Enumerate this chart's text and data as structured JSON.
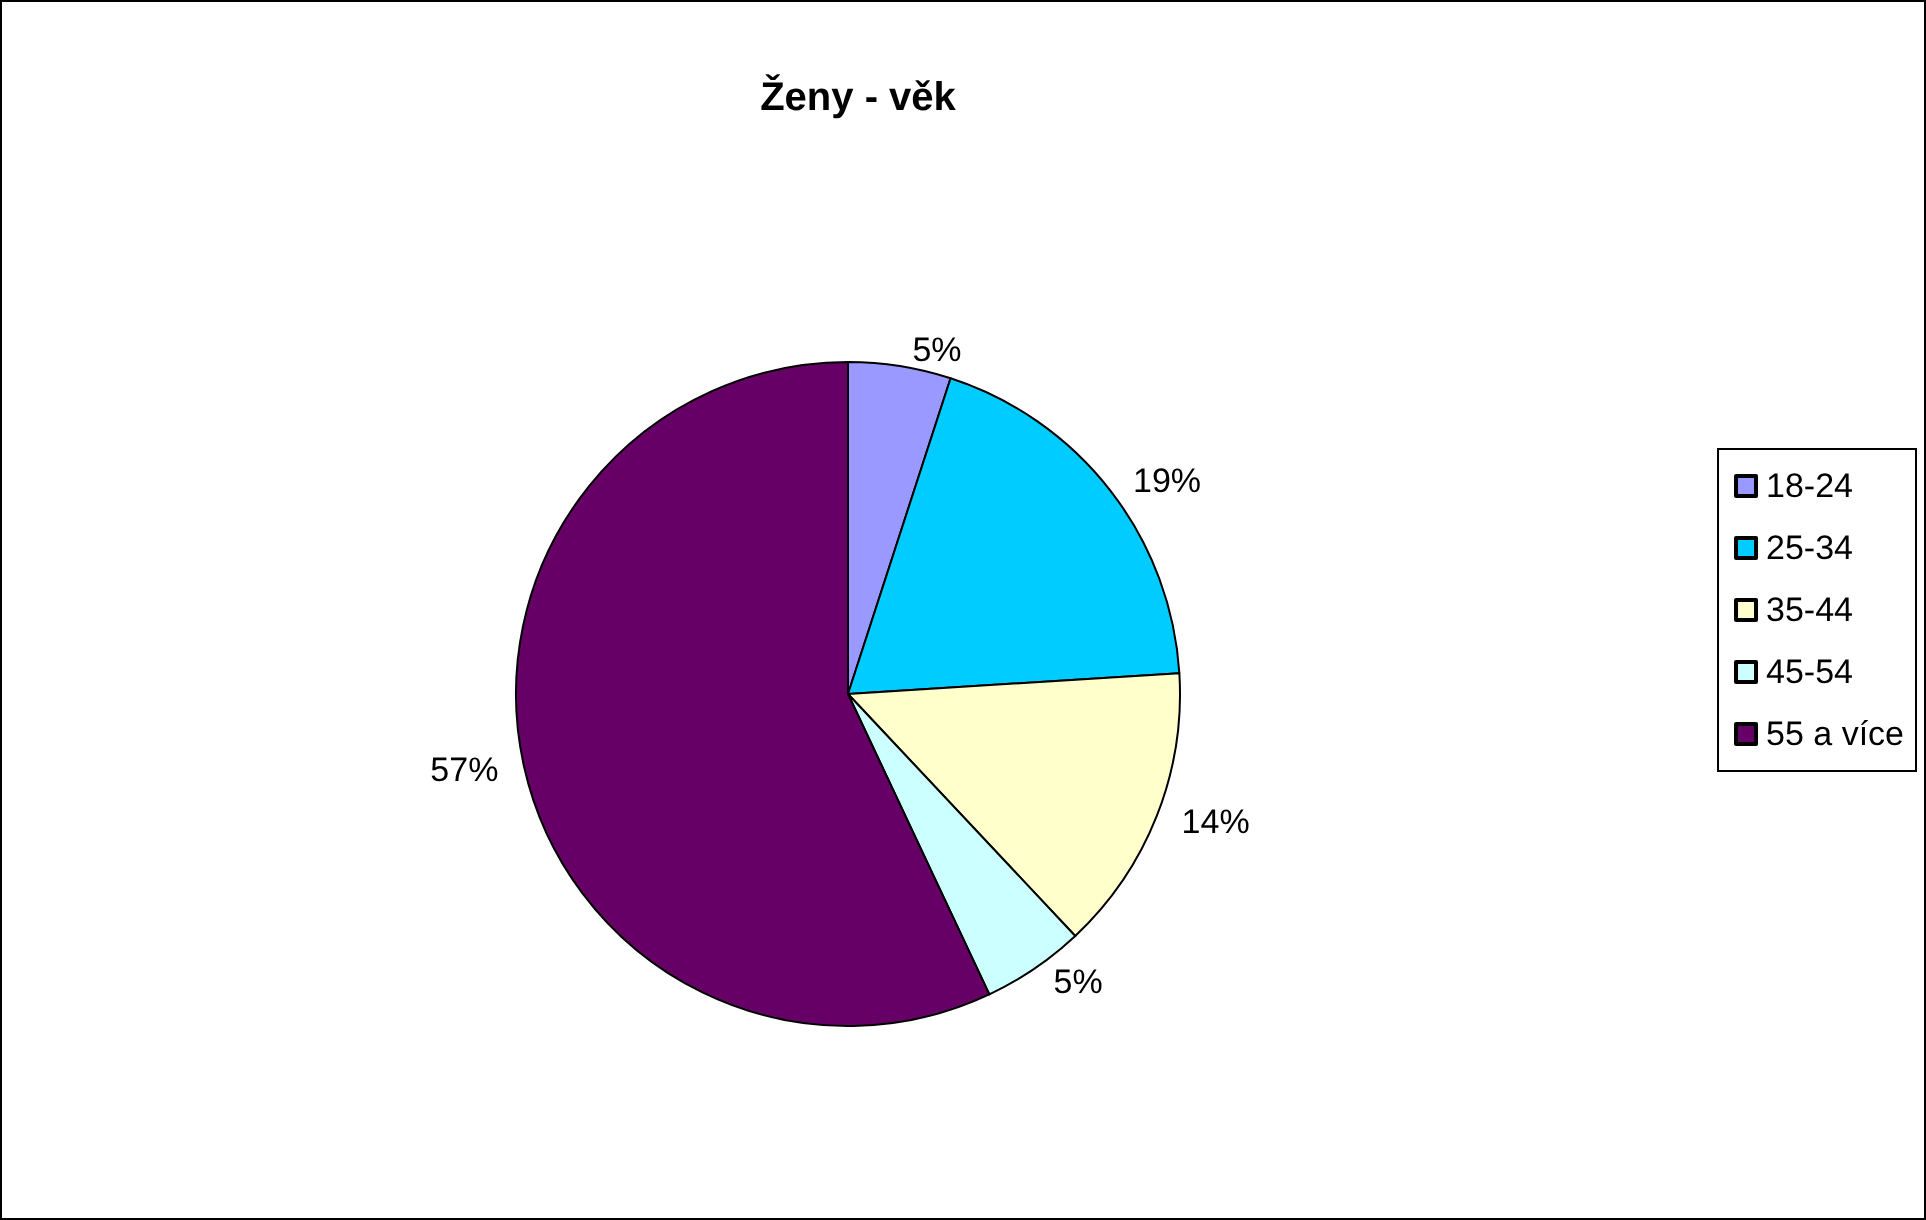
{
  "chart_data": {
    "type": "pie",
    "title": "Ženy - věk",
    "categories": [
      "18-24",
      "25-34",
      "35-44",
      "45-54",
      "55 a více"
    ],
    "values": [
      5,
      19,
      14,
      5,
      57
    ],
    "colors": [
      "#9999ff",
      "#00ccff",
      "#ffffcc",
      "#ccffff",
      "#660066"
    ],
    "value_labels": [
      "5%",
      "19%",
      "14%",
      "5%",
      "57%"
    ],
    "legend": "right"
  }
}
